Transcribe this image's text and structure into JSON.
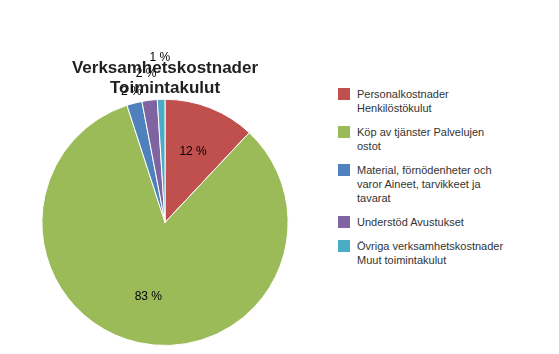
{
  "chart_data": {
    "type": "pie",
    "title": "Verksamhetskostnader\nToimintakulut",
    "categories": [
      "Personalkostnader\nHenkilöstökulut",
      "Köp av tjänster Palvelujen\nostot",
      "Material, förnödenheter och\nvaror Aineet, tarvikkeet ja\ntavarat",
      "Understöd Avustukset",
      "Övriga verksamhetskostnader\nMuut toimintakulut"
    ],
    "values": [
      12,
      83,
      2,
      2,
      1
    ],
    "value_labels": [
      "12 %",
      "83 %",
      "2 %",
      "2 %",
      "1 %"
    ],
    "colors": [
      "#C0504D",
      "#9BBB59",
      "#4F81BD",
      "#8064A2",
      "#4BACC6"
    ],
    "data_labels": true,
    "legend": "right"
  }
}
